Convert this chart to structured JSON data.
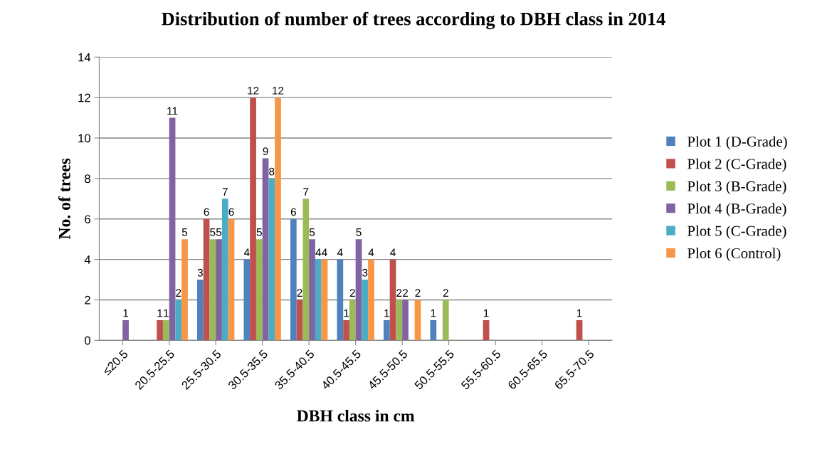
{
  "chart_data": {
    "type": "bar",
    "title": "Distribution of number of trees according to DBH class in 2014",
    "xlabel": "DBH class in cm",
    "ylabel": "No. of trees",
    "categories": [
      "≤20.5",
      "20.5-25.5",
      "25.5-30.5",
      "30.5-35.5",
      "35.5-40.5",
      "40.5-45.5",
      "45.5-50.5",
      "50.5-55.5",
      "55.5-60.5",
      "60.5-65.5",
      "65.5-70.5"
    ],
    "series": [
      {
        "name": "Plot 1 (D-Grade)",
        "color": "#4f81bd",
        "values": [
          null,
          null,
          3,
          4,
          6,
          4,
          1,
          1,
          null,
          null,
          null
        ]
      },
      {
        "name": "Plot 2 (C-Grade)",
        "color": "#c0504d",
        "values": [
          null,
          1,
          6,
          12,
          2,
          1,
          4,
          null,
          1,
          null,
          1
        ]
      },
      {
        "name": "Plot 3 (B-Grade)",
        "color": "#9bbb59",
        "values": [
          null,
          1,
          5,
          5,
          7,
          2,
          2,
          2,
          null,
          null,
          null
        ]
      },
      {
        "name": "Plot 4 (B-Grade)",
        "color": "#8064a2",
        "values": [
          1,
          11,
          5,
          9,
          5,
          5,
          2,
          null,
          null,
          null,
          null
        ]
      },
      {
        "name": "Plot 5 (C-Grade)",
        "color": "#4bacc6",
        "values": [
          null,
          2,
          7,
          8,
          4,
          3,
          null,
          null,
          null,
          null,
          null
        ]
      },
      {
        "name": "Plot 6 (Control)",
        "color": "#f79646",
        "values": [
          null,
          5,
          6,
          12,
          4,
          4,
          2,
          null,
          null,
          null,
          null
        ]
      }
    ],
    "ylim": [
      0,
      14
    ],
    "yticks": [
      0,
      2,
      4,
      6,
      8,
      10,
      12,
      14
    ],
    "grid": "y",
    "legend": "right",
    "data_labels": true
  }
}
